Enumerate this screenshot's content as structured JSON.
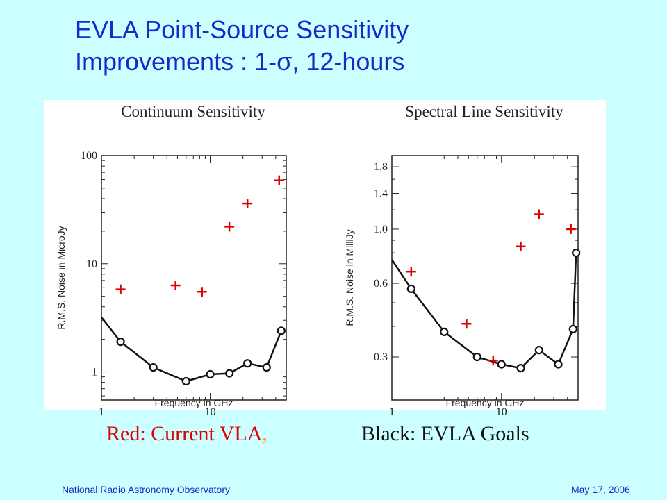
{
  "slide": {
    "title_line1": "EVLA Point-Source Sensitivity",
    "title_line2": "Improvements : 1-σ, 12-hours",
    "caption_red": "Red:  Current VLA",
    "caption_red_comma": ",",
    "caption_black": "Black:  EVLA Goals",
    "footer_left": "National Radio Astronomy Observatory",
    "footer_right": "May 17, 2006"
  },
  "colors": {
    "background": "#ccffff",
    "title": "#1d28c8",
    "current_vla": "#e00000",
    "evla_goals": "#111111",
    "comma": "#ff9900"
  },
  "chart_data": [
    {
      "type": "scatter",
      "title": "Continuum Sensitivity",
      "xlabel": "Frequency in GHz",
      "ylabel": "R.M.S. Noise in MicroJy",
      "xscale": "log",
      "yscale": "log",
      "xlim": [
        1,
        50
      ],
      "ylim": [
        0.55,
        100
      ],
      "xticks": [
        "1",
        "10"
      ],
      "yticks": [
        "1",
        "10",
        "100"
      ],
      "series": [
        {
          "color": "#e00000",
          "marker": "plus",
          "x": [
            1.5,
            4.8,
            8.4,
            15,
            22,
            43
          ],
          "y": [
            5.8,
            6.3,
            5.5,
            22,
            36,
            59
          ]
        },
        {
          "color": "#111111",
          "marker": "circle-line",
          "x": [
            1.5,
            3,
            6,
            10,
            15,
            22,
            33,
            45
          ],
          "y": [
            1.9,
            1.1,
            0.82,
            0.95,
            0.97,
            1.2,
            1.1,
            2.4
          ]
        }
      ],
      "curve": {
        "x": [
          1,
          1.5,
          3,
          6,
          10,
          15,
          22,
          33,
          45
        ],
        "y": [
          3.2,
          1.9,
          1.1,
          0.82,
          0.95,
          0.97,
          1.2,
          1.1,
          2.4
        ]
      }
    },
    {
      "type": "scatter",
      "title": "Spectral Line Sensitivity",
      "xlabel": "Frequency in GHz",
      "ylabel": "R.M.S. Noise in MilliJy",
      "xscale": "log",
      "yscale": "log",
      "xlim": [
        1,
        50
      ],
      "ylim": [
        0.2,
        2.0
      ],
      "xticks": [
        "1",
        "10"
      ],
      "yticks": [
        "1.8",
        "1.4",
        "1.0",
        "0.6",
        "0.3"
      ],
      "series": [
        {
          "color": "#e00000",
          "marker": "plus",
          "x": [
            1.5,
            4.8,
            8.4,
            15,
            22,
            43
          ],
          "y": [
            0.67,
            0.41,
            0.29,
            0.85,
            1.15,
            1.0
          ]
        },
        {
          "color": "#111111",
          "marker": "circle-line",
          "x": [
            1.5,
            3,
            6,
            10,
            15,
            22,
            33,
            45,
            48
          ],
          "y": [
            0.57,
            0.38,
            0.3,
            0.28,
            0.27,
            0.32,
            0.28,
            0.39,
            0.8
          ]
        }
      ],
      "curve": {
        "x": [
          1,
          1.5,
          3,
          6,
          10,
          15,
          22,
          33,
          45,
          48
        ],
        "y": [
          0.75,
          0.57,
          0.38,
          0.3,
          0.28,
          0.27,
          0.32,
          0.28,
          0.39,
          0.8
        ]
      }
    }
  ]
}
